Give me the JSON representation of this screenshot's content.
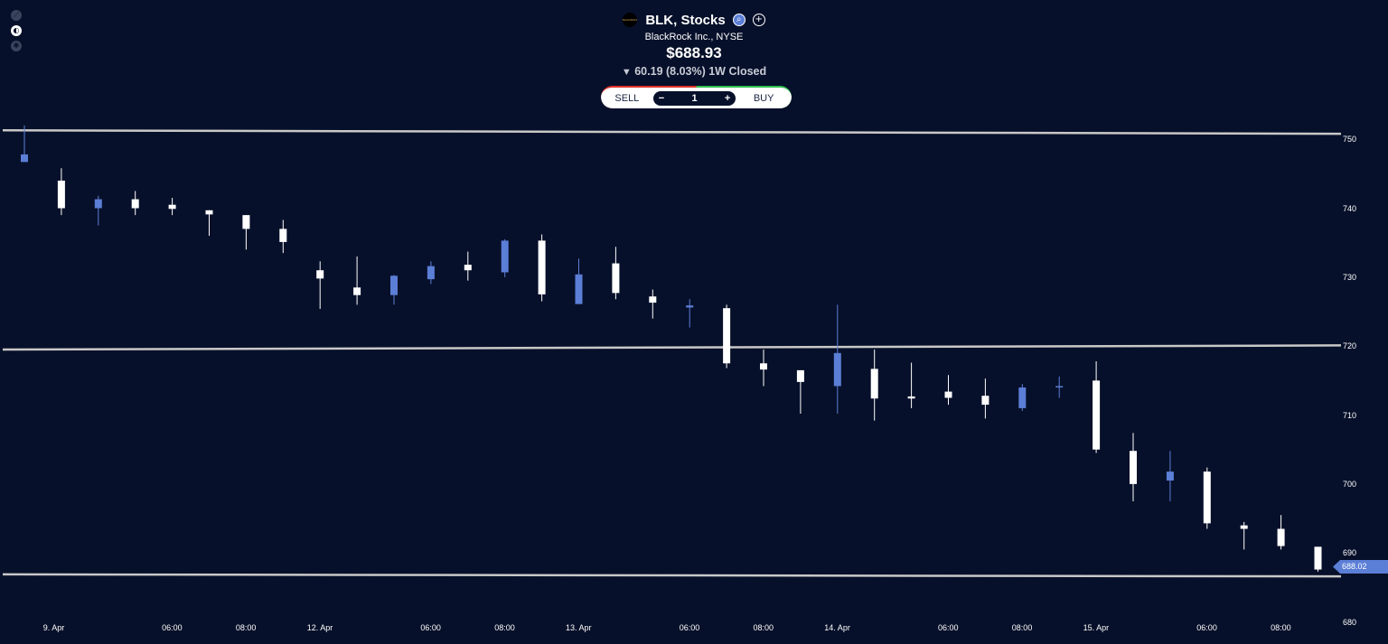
{
  "header": {
    "logo_text": "BLACKROCK",
    "title": "BLK, Stocks",
    "subtitle": "BlackRock Inc., NYSE",
    "price": "$688.93",
    "change_arrow": "▼",
    "change": "60.19 (8.03%) 1W Closed",
    "icons": [
      "search-icon",
      "plus-circle-icon"
    ]
  },
  "left_toolbar": {
    "icons": [
      "trend-line-icon",
      "indicator-icon",
      "settings-icon"
    ]
  },
  "trade": {
    "sell_label": "SELL",
    "buy_label": "BUY",
    "minus": "−",
    "plus": "+",
    "quantity": "1"
  },
  "colors": {
    "background": "#07102a",
    "up": "#5b7ed6",
    "down": "#ffffff",
    "line": "#c8c8c8",
    "sell": "#e0312b",
    "buy": "#2fbf4f"
  },
  "current_price_label": "688.02",
  "chart_data": {
    "type": "candlestick",
    "ylim": [
      678.5,
      755
    ],
    "y_ticks": [
      750,
      740,
      730,
      720,
      710,
      700,
      690,
      680
    ],
    "x_ticks": [
      {
        "label": "9. Apr",
        "i": 0.8
      },
      {
        "label": "06:00",
        "i": 4.0
      },
      {
        "label": "08:00",
        "i": 6.0
      },
      {
        "label": "12. Apr",
        "i": 8.0
      },
      {
        "label": "06:00",
        "i": 11.0
      },
      {
        "label": "08:00",
        "i": 13.0
      },
      {
        "label": "13. Apr",
        "i": 15.0
      },
      {
        "label": "06:00",
        "i": 18.0
      },
      {
        "label": "08:00",
        "i": 20.0
      },
      {
        "label": "14. Apr",
        "i": 22.0
      },
      {
        "label": "06:00",
        "i": 25.0
      },
      {
        "label": "08:00",
        "i": 27.0
      },
      {
        "label": "15. Apr",
        "i": 29.0
      },
      {
        "label": "06:00",
        "i": 32.0
      },
      {
        "label": "08:00",
        "i": 34.0
      }
    ],
    "candles": [
      {
        "o": 746.7,
        "h": 752.0,
        "l": 746.7,
        "c": 747.8
      },
      {
        "o": 744.0,
        "h": 745.8,
        "l": 739.0,
        "c": 740.0
      },
      {
        "o": 740.0,
        "h": 741.8,
        "l": 737.5,
        "c": 741.3
      },
      {
        "o": 741.3,
        "h": 742.5,
        "l": 739.0,
        "c": 740.0
      },
      {
        "o": 740.5,
        "h": 741.5,
        "l": 739.0,
        "c": 739.9
      },
      {
        "o": 739.7,
        "h": 739.7,
        "l": 736.0,
        "c": 739.1
      },
      {
        "o": 739.0,
        "h": 739.0,
        "l": 734.0,
        "c": 737.0
      },
      {
        "o": 737.0,
        "h": 738.3,
        "l": 733.5,
        "c": 735.1
      },
      {
        "o": 731.0,
        "h": 732.3,
        "l": 725.4,
        "c": 729.8
      },
      {
        "o": 728.5,
        "h": 733.0,
        "l": 726.0,
        "c": 727.4
      },
      {
        "o": 727.4,
        "h": 730.3,
        "l": 726.0,
        "c": 730.2
      },
      {
        "o": 729.7,
        "h": 732.3,
        "l": 729.0,
        "c": 731.6
      },
      {
        "o": 731.8,
        "h": 733.7,
        "l": 729.5,
        "c": 731.0
      },
      {
        "o": 730.7,
        "h": 735.5,
        "l": 730.0,
        "c": 735.3
      },
      {
        "o": 735.3,
        "h": 736.2,
        "l": 726.5,
        "c": 727.5
      },
      {
        "o": 726.1,
        "h": 732.7,
        "l": 726.1,
        "c": 730.4
      },
      {
        "o": 732.0,
        "h": 734.4,
        "l": 726.8,
        "c": 727.7
      },
      {
        "o": 727.2,
        "h": 728.2,
        "l": 724.0,
        "c": 726.3
      },
      {
        "o": 725.6,
        "h": 726.8,
        "l": 722.7,
        "c": 725.9
      },
      {
        "o": 725.5,
        "h": 726.0,
        "l": 716.8,
        "c": 717.5
      },
      {
        "o": 717.5,
        "h": 719.5,
        "l": 714.2,
        "c": 716.6
      },
      {
        "o": 716.5,
        "h": 716.5,
        "l": 710.2,
        "c": 714.8
      },
      {
        "o": 714.2,
        "h": 726.0,
        "l": 710.2,
        "c": 719.0
      },
      {
        "o": 716.7,
        "h": 719.5,
        "l": 709.2,
        "c": 712.4
      },
      {
        "o": 712.7,
        "h": 717.6,
        "l": 711.0,
        "c": 712.4
      },
      {
        "o": 713.4,
        "h": 715.8,
        "l": 711.5,
        "c": 712.5
      },
      {
        "o": 712.8,
        "h": 715.3,
        "l": 709.5,
        "c": 711.5
      },
      {
        "o": 711.0,
        "h": 714.5,
        "l": 710.6,
        "c": 714.0
      },
      {
        "o": 714.2,
        "h": 715.6,
        "l": 712.5,
        "c": 714.2
      },
      {
        "o": 715.0,
        "h": 717.8,
        "l": 704.5,
        "c": 705.0
      },
      {
        "o": 704.8,
        "h": 707.4,
        "l": 697.5,
        "c": 700.0
      },
      {
        "o": 700.5,
        "h": 704.8,
        "l": 697.5,
        "c": 701.8
      },
      {
        "o": 701.8,
        "h": 702.4,
        "l": 693.5,
        "c": 694.3
      },
      {
        "o": 694.0,
        "h": 694.5,
        "l": 690.5,
        "c": 693.5
      },
      {
        "o": 693.5,
        "h": 695.5,
        "l": 690.5,
        "c": 691.0
      },
      {
        "o": 690.9,
        "h": 690.9,
        "l": 687.3,
        "c": 687.6
      }
    ],
    "horizontal_lines": [
      {
        "y1": 751.3,
        "y2": 750.8
      },
      {
        "y1": 719.5,
        "y2": 720.1
      },
      {
        "y1": 686.9,
        "y2": 686.6
      }
    ],
    "last_price": 688.02
  }
}
